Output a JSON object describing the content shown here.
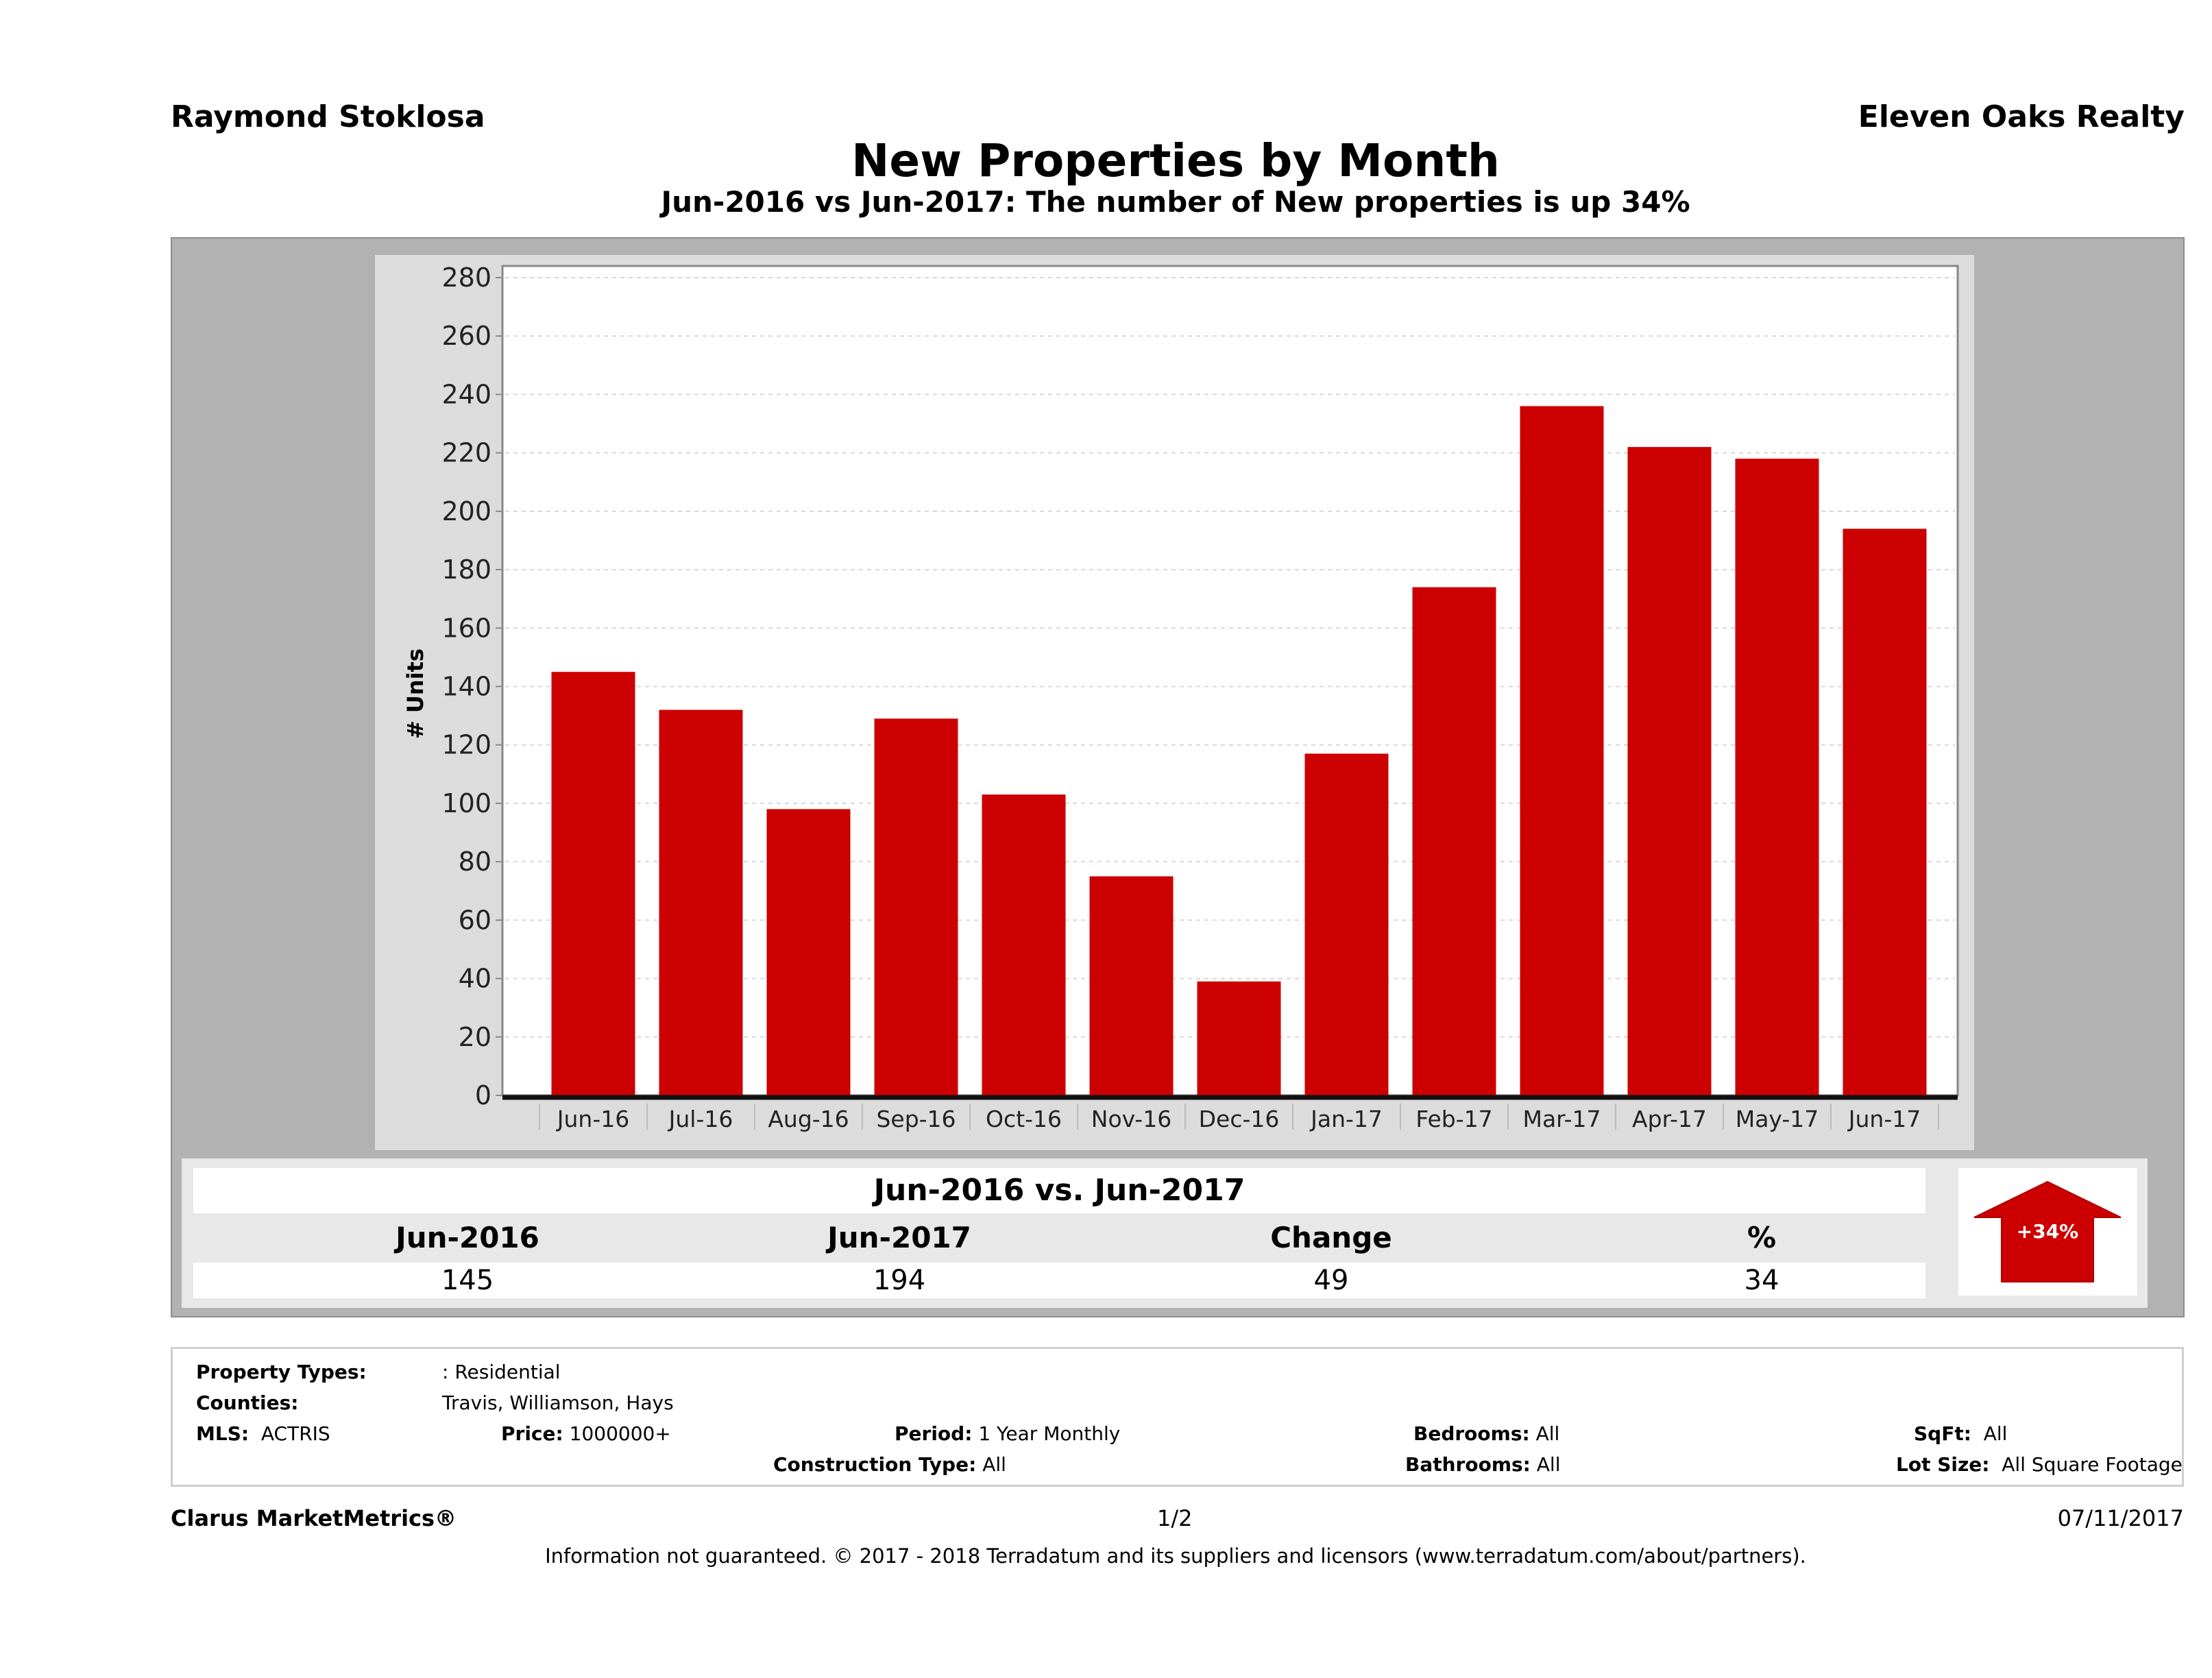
{
  "header": {
    "agent_name": "Raymond Stoklosa",
    "company": "Eleven Oaks Realty",
    "title": "New Properties by Month",
    "subtitle": "Jun-2016 vs Jun-2017: The number of New  properties is up 34%"
  },
  "chart_data": {
    "type": "bar",
    "title": "New Properties by Month",
    "xlabel": "",
    "ylabel": "# Units",
    "ylim": [
      0,
      280
    ],
    "yticks": [
      0,
      20,
      40,
      60,
      80,
      100,
      120,
      140,
      160,
      180,
      200,
      220,
      240,
      260,
      280
    ],
    "grid": true,
    "legend": "none",
    "categories": [
      "Jun-16",
      "Jul-16",
      "Aug-16",
      "Sep-16",
      "Oct-16",
      "Nov-16",
      "Dec-16",
      "Jan-17",
      "Feb-17",
      "Mar-17",
      "Apr-17",
      "May-17",
      "Jun-17"
    ],
    "series": [
      {
        "name": "New Properties",
        "color": "#cc0000",
        "values": [
          145,
          132,
          98,
          129,
          103,
          75,
          39,
          117,
          174,
          236,
          222,
          218,
          194
        ]
      }
    ]
  },
  "summary": {
    "title": "Jun-2016 vs. Jun-2017",
    "columns": [
      "Jun-2016",
      "Jun-2017",
      "Change",
      "%"
    ],
    "values": [
      "145",
      "194",
      "49",
      "34"
    ],
    "badge_label": "+34%",
    "badge_icon": "up-arrow-icon",
    "badge_color": "#cc0000"
  },
  "filters": {
    "property_types_label": "Property Types:",
    "property_types_value": ": Residential",
    "counties_label": "Counties:",
    "counties_value": "Travis, Williamson, Hays",
    "mls_label": "MLS:",
    "mls_value": "ACTRIS",
    "price_label": "Price:",
    "price_value": "1000000+",
    "period_label": "Period:",
    "period_value": "1 Year Monthly",
    "construction_label": "Construction Type:",
    "construction_value": "All",
    "bedrooms_label": "Bedrooms:",
    "bedrooms_value": "All",
    "bathrooms_label": "Bathrooms:",
    "bathrooms_value": "All",
    "sqft_label": "SqFt:",
    "sqft_value": "All",
    "lot_label": "Lot Size:",
    "lot_value": "All Square Footage"
  },
  "footer": {
    "brand": "Clarus MarketMetrics®",
    "page": "1/2",
    "date": "07/11/2017",
    "disclaimer": "Information not guaranteed. © 2017 - 2018 Terradatum and its suppliers and licensors (www.terradatum.com/about/partners)."
  }
}
